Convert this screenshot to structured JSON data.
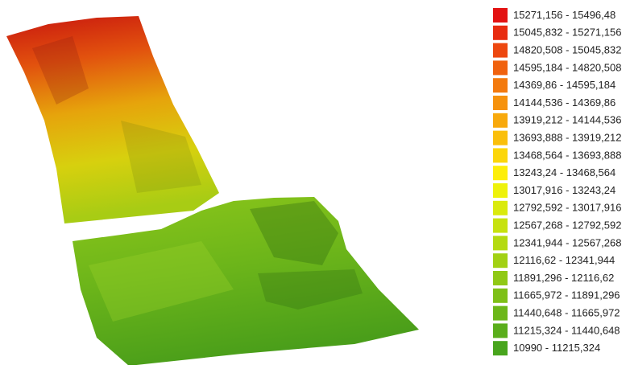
{
  "legend": {
    "items": [
      {
        "label": "15271,156 - 15496,48",
        "color": "#e31212"
      },
      {
        "label": "15045,832 - 15271,156",
        "color": "#e82c10"
      },
      {
        "label": "14820,508 - 15045,832",
        "color": "#ed470f"
      },
      {
        "label": "14595,184 - 14820,508",
        "color": "#f0620e"
      },
      {
        "label": "14369,86 - 14595,184",
        "color": "#f37a0e"
      },
      {
        "label": "14144,536 - 14369,86",
        "color": "#f6920d"
      },
      {
        "label": "13919,212 - 14144,536",
        "color": "#f8a90c"
      },
      {
        "label": "13693,888 - 13919,212",
        "color": "#fabf0b"
      },
      {
        "label": "13468,564 - 13693,888",
        "color": "#fcd60a"
      },
      {
        "label": "13243,24 - 13468,564",
        "color": "#fdee0a"
      },
      {
        "label": "13017,916 - 13243,24",
        "color": "#eef20b"
      },
      {
        "label": "12792,592 - 13017,916",
        "color": "#daea0d"
      },
      {
        "label": "12567,268 - 12792,592",
        "color": "#c7e20f"
      },
      {
        "label": "12341,944 - 12567,268",
        "color": "#b4da11"
      },
      {
        "label": "12116,62 - 12341,944",
        "color": "#a2d113"
      },
      {
        "label": "11891,296 - 12116,62",
        "color": "#90c915"
      },
      {
        "label": "11665,972 - 11891,296",
        "color": "#7ec017"
      },
      {
        "label": "11440,648 - 11665,972",
        "color": "#6cb719"
      },
      {
        "label": "11215,324 - 11440,648",
        "color": "#5aae1b"
      },
      {
        "label": "10990 - 11215,324",
        "color": "#48a51d"
      }
    ]
  }
}
